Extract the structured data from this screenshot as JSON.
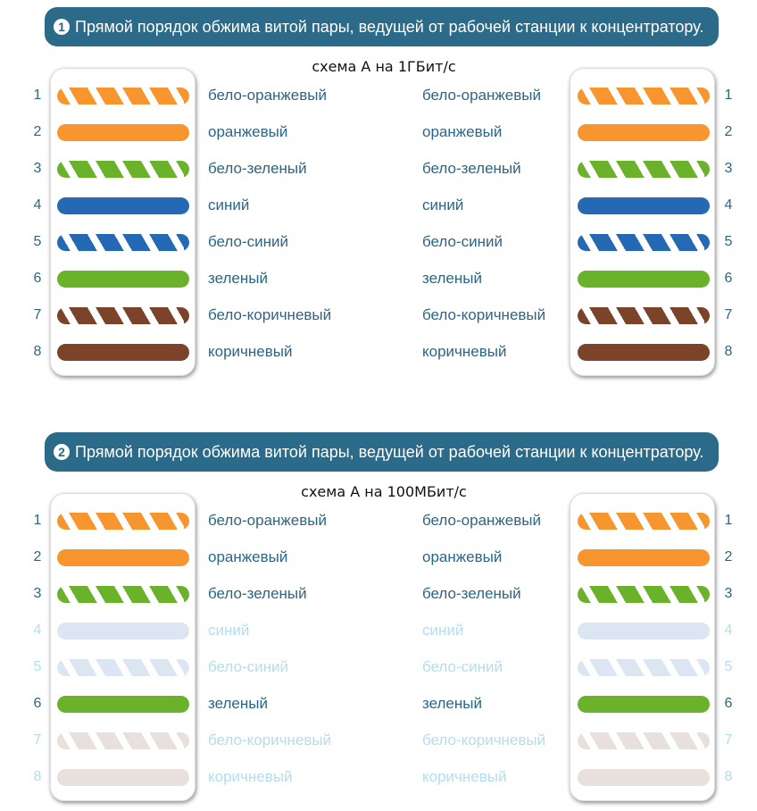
{
  "sections": [
    {
      "badge": "1",
      "banner": "Прямой порядок обжима витой пары, ведущей от рабочей станции к концентратору.",
      "title": "схема А на 1ГБит/с",
      "wires": [
        {
          "pin": "1",
          "label": "бело-оранжевый",
          "color": "#f7962f",
          "striped": true,
          "active": true
        },
        {
          "pin": "2",
          "label": "оранжевый",
          "color": "#f7962f",
          "striped": false,
          "active": true
        },
        {
          "pin": "3",
          "label": "бело-зеленый",
          "color": "#6ab22a",
          "striped": true,
          "active": true
        },
        {
          "pin": "4",
          "label": "синий",
          "color": "#2569b4",
          "striped": false,
          "active": true
        },
        {
          "pin": "5",
          "label": "бело-синий",
          "color": "#2569b4",
          "striped": true,
          "active": true
        },
        {
          "pin": "6",
          "label": "зеленый",
          "color": "#6ab22a",
          "striped": false,
          "active": true
        },
        {
          "pin": "7",
          "label": "бело-коричневый",
          "color": "#7a432a",
          "striped": true,
          "active": true
        },
        {
          "pin": "8",
          "label": "коричневый",
          "color": "#7a432a",
          "striped": false,
          "active": true
        }
      ]
    },
    {
      "badge": "2",
      "banner": "Прямой порядок обжима витой пары, ведущей от рабочей станции к концентратору.",
      "title": "схема А на 100МБит/с",
      "wires": [
        {
          "pin": "1",
          "label": "бело-оранжевый",
          "color": "#f7962f",
          "striped": true,
          "active": true
        },
        {
          "pin": "2",
          "label": "оранжевый",
          "color": "#f7962f",
          "striped": false,
          "active": true
        },
        {
          "pin": "3",
          "label": "бело-зеленый",
          "color": "#6ab22a",
          "striped": true,
          "active": true
        },
        {
          "pin": "4",
          "label": "синий",
          "color": "#dce6f2",
          "striped": false,
          "active": false
        },
        {
          "pin": "5",
          "label": "бело-синий",
          "color": "#dce6f2",
          "striped": true,
          "active": false
        },
        {
          "pin": "6",
          "label": "зеленый",
          "color": "#6ab22a",
          "striped": false,
          "active": true
        },
        {
          "pin": "7",
          "label": "бело-коричневый",
          "color": "#e8e0dc",
          "striped": true,
          "active": false
        },
        {
          "pin": "8",
          "label": "коричневый",
          "color": "#e8e0dc",
          "striped": false,
          "active": false
        }
      ]
    }
  ]
}
